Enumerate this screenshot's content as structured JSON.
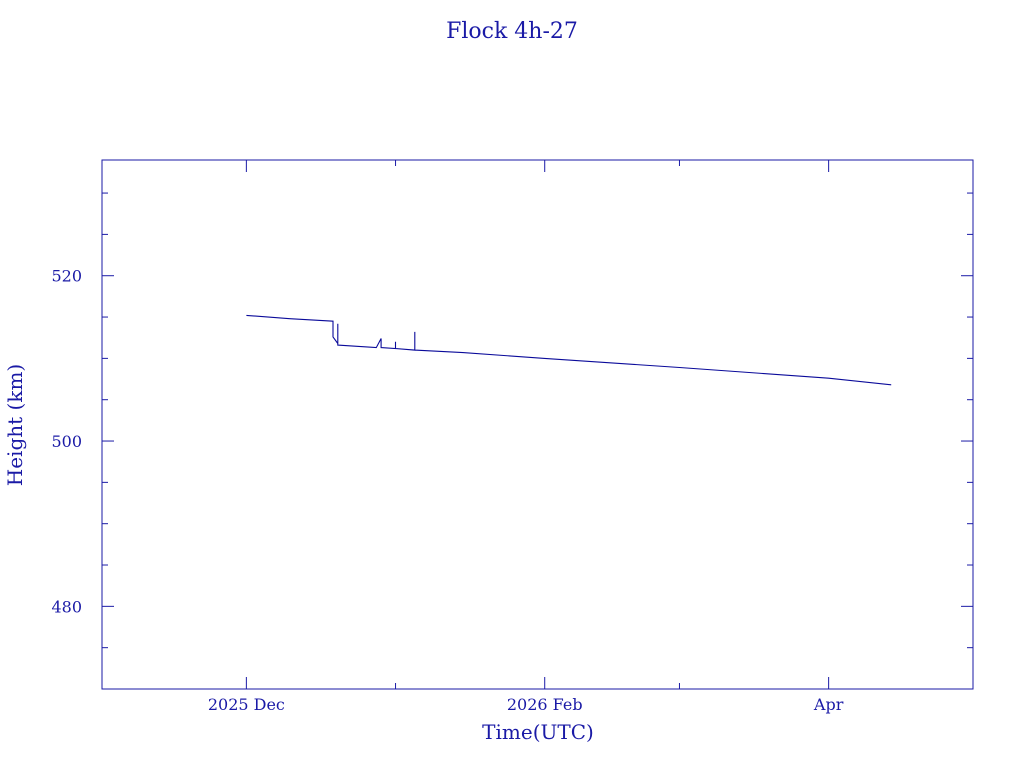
{
  "chart_data": {
    "type": "line",
    "title": "Flock 4h-27",
    "xlabel": "Time(UTC)",
    "ylabel": "Height (km)",
    "color": "#0a0a9a",
    "x_tick_labels": [
      {
        "date": "2025-12-01",
        "label": "2025 Dec"
      },
      {
        "date": "2026-02-01",
        "label": "2026 Feb"
      },
      {
        "date": "2026-04-01",
        "label": "Apr"
      }
    ],
    "y_ticks": [
      480,
      500,
      520
    ],
    "xlim": [
      "2025-11-01",
      "2026-05-01"
    ],
    "ylim": [
      470,
      534
    ],
    "grid": false,
    "series": [
      {
        "points": [
          [
            "2025-12-01",
            515.2
          ],
          [
            "2025-12-10",
            514.8
          ],
          [
            "2025-12-19",
            514.5
          ],
          [
            "2025-12-19",
            512.6
          ],
          [
            "2025-12-20",
            511.8
          ],
          [
            "2025-12-20",
            514.2
          ],
          [
            "2025-12-20",
            511.6
          ],
          [
            "2025-12-28",
            511.3
          ],
          [
            "2025-12-29",
            512.4
          ],
          [
            "2025-12-29",
            511.3
          ],
          [
            "2026-01-01",
            511.2
          ],
          [
            "2026-01-01",
            512.0
          ],
          [
            "2026-01-01",
            511.2
          ],
          [
            "2026-01-05",
            511.0
          ],
          [
            "2026-01-05",
            513.2
          ],
          [
            "2026-01-05",
            511.0
          ],
          [
            "2026-01-15",
            510.7
          ],
          [
            "2026-02-01",
            510.0
          ],
          [
            "2026-03-01",
            508.9
          ],
          [
            "2026-04-01",
            507.6
          ],
          [
            "2026-04-14",
            506.8
          ]
        ]
      }
    ]
  }
}
